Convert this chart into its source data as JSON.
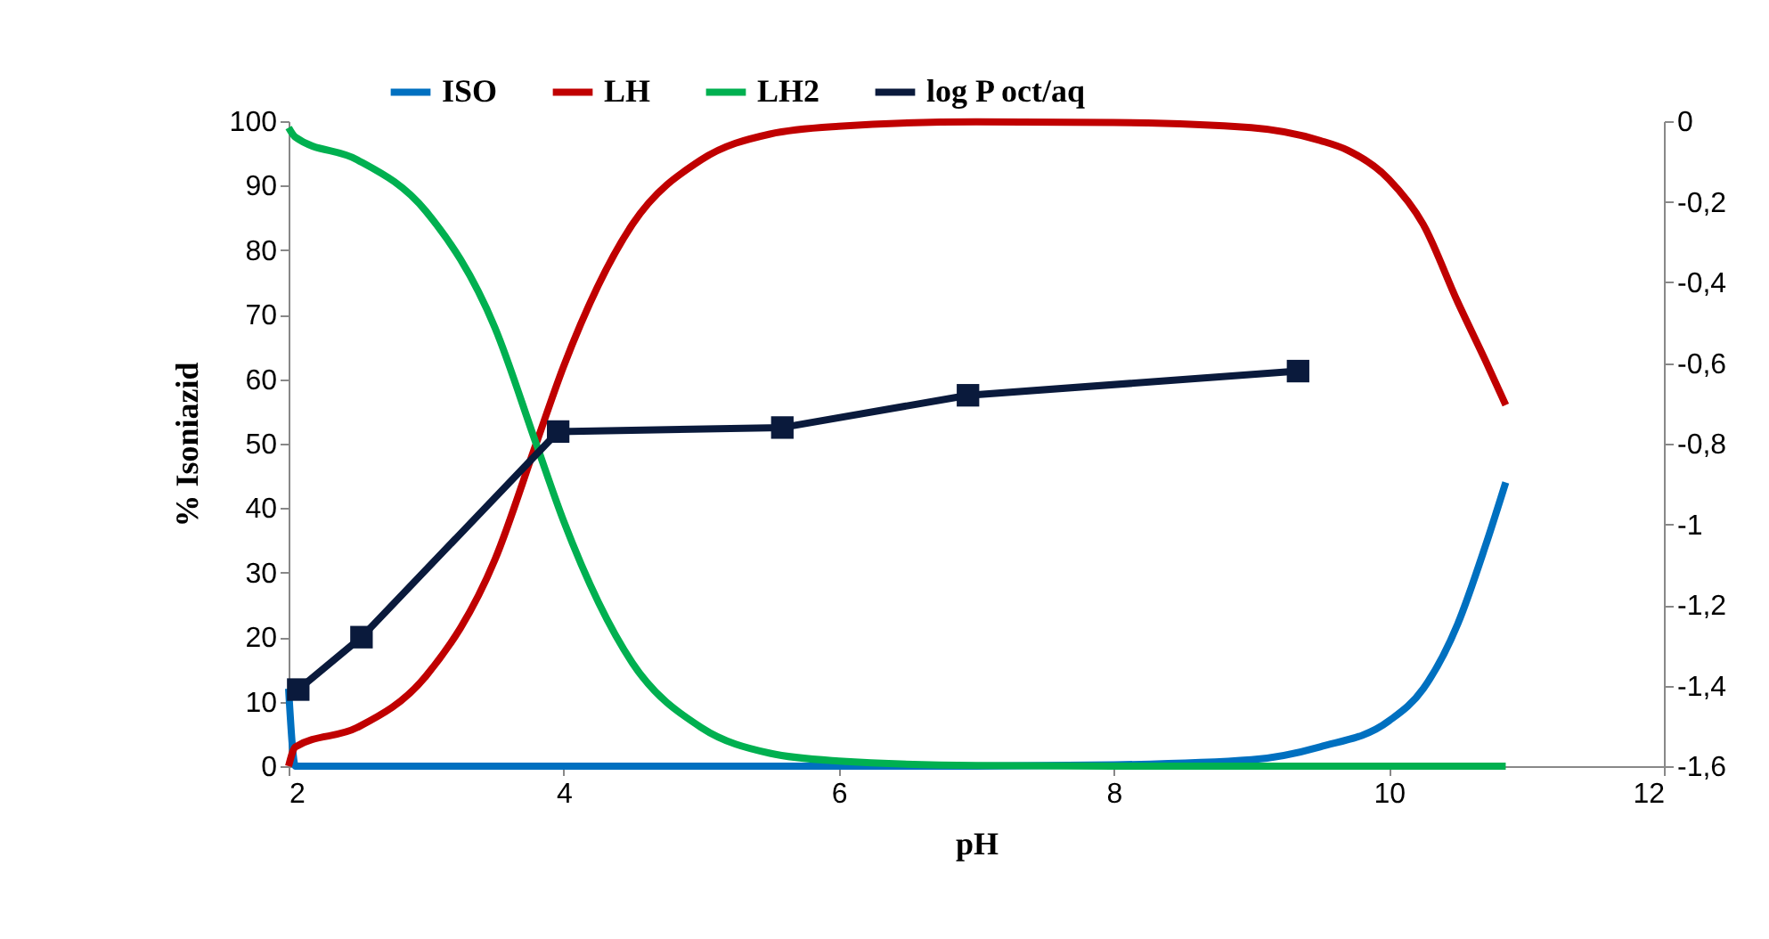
{
  "chart_data": {
    "type": "line",
    "xlabel": "pH",
    "ylabel": "% Isoniazid",
    "legend": "top",
    "grid": false,
    "xlim": [
      2,
      12
    ],
    "xticks": [
      2,
      4,
      6,
      8,
      10,
      12
    ],
    "ylim": [
      0,
      100
    ],
    "yticks": [
      0,
      10,
      20,
      30,
      40,
      50,
      60,
      70,
      80,
      90,
      100
    ],
    "y2lim": [
      -1.6,
      0
    ],
    "y2ticks": [
      {
        "value": -1.6,
        "label": "-1,6"
      },
      {
        "value": -1.4,
        "label": "-1,4"
      },
      {
        "value": -1.2,
        "label": "-1,2"
      },
      {
        "value": -1,
        "label": "-1"
      },
      {
        "value": -0.8,
        "label": "-0,8"
      },
      {
        "value": -0.6,
        "label": "-0,6"
      },
      {
        "value": -0.4,
        "label": "-0,4"
      },
      {
        "value": -0.2,
        "label": "-0,2"
      },
      {
        "value": 0,
        "label": "0"
      }
    ],
    "series": [
      {
        "name": "ISO",
        "color": "#0070c0",
        "marker": "none",
        "x": [
          2,
          2.05,
          3,
          4,
          5,
          6,
          7,
          8,
          9,
          9.5,
          10,
          10.25,
          10.5,
          10.7,
          10.85
        ],
        "values": [
          12,
          0,
          0,
          0,
          0,
          0,
          0,
          0.2,
          1,
          3,
          7,
          12,
          22,
          34,
          44
        ]
      },
      {
        "name": "LH",
        "color": "#c00000",
        "marker": "none",
        "x": [
          2,
          2.05,
          2.5,
          3,
          3.5,
          3.8,
          4,
          4.5,
          5,
          5.5,
          6,
          7,
          8,
          9,
          9.5,
          9.7,
          10,
          10.25,
          10.5,
          10.7,
          10.85
        ],
        "values": [
          0,
          3,
          6,
          14,
          32,
          50,
          62,
          84,
          94,
          98,
          99.2,
          99.9,
          99.8,
          99,
          97,
          95.5,
          91,
          84,
          72,
          63,
          56
        ]
      },
      {
        "name": "LH2",
        "color": "#00b050",
        "marker": "none",
        "x": [
          2,
          2.05,
          2.5,
          3,
          3.5,
          3.8,
          4,
          4.5,
          5,
          5.5,
          6,
          7,
          8,
          9,
          10,
          10.85
        ],
        "values": [
          99,
          97.5,
          94,
          86,
          68,
          50,
          38,
          16,
          6,
          2,
          0.8,
          0.1,
          0,
          0,
          0,
          0
        ]
      },
      {
        "name": "log P oct/aq",
        "color": "#0a1a3c",
        "marker": "square",
        "axis": "y2",
        "x": [
          2.07,
          2.53,
          3.96,
          5.59,
          6.94,
          9.34
        ],
        "values": [
          -1.41,
          -1.28,
          -0.77,
          -0.76,
          -0.68,
          -0.62
        ]
      }
    ]
  }
}
